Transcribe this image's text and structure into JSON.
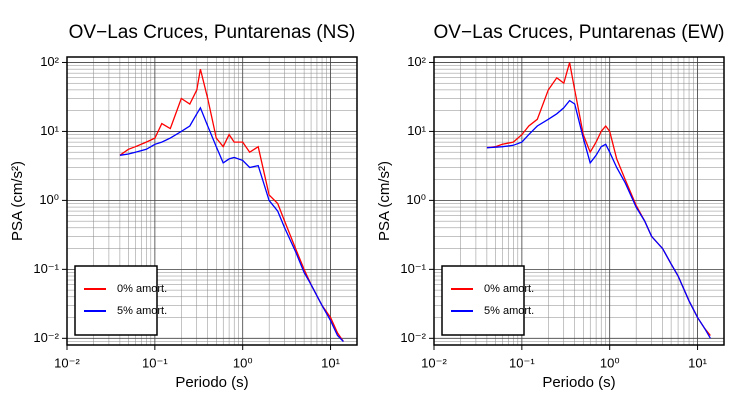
{
  "chart_data": [
    {
      "type": "line",
      "title": "OV−Las Cruces, Puntarenas (NS)",
      "x_label": "Periodo (s)",
      "y_label": "PSA (cm/s²)",
      "log_x": true,
      "log_y": true,
      "grid": true,
      "legend": "lower left",
      "xlim": [
        0.01,
        20
      ],
      "ylim": [
        0.008,
        120
      ],
      "xticks": [
        {
          "value": 0.01,
          "label": "10⁻²"
        },
        {
          "value": 0.1,
          "label": "10⁻¹"
        },
        {
          "value": 1,
          "label": "10⁰"
        },
        {
          "value": 10,
          "label": "10¹"
        }
      ],
      "yticks": [
        {
          "value": 0.01,
          "label": "10⁻²"
        },
        {
          "value": 0.1,
          "label": "10⁻¹"
        },
        {
          "value": 1,
          "label": "10⁰"
        },
        {
          "value": 10,
          "label": "10¹"
        },
        {
          "value": 100,
          "label": "10²"
        }
      ],
      "x": [
        0.04,
        0.05,
        0.06,
        0.08,
        0.1,
        0.12,
        0.15,
        0.2,
        0.25,
        0.3,
        0.33,
        0.4,
        0.5,
        0.6,
        0.7,
        0.8,
        1,
        1.2,
        1.5,
        2,
        2.5,
        3,
        4,
        5,
        6,
        8,
        10,
        12,
        14
      ],
      "series": [
        {
          "name": "0% amort.",
          "color": "#ff0000",
          "values": [
            4.5,
            5.5,
            6,
            7,
            8,
            13,
            11,
            30,
            25,
            40,
            80,
            30,
            8,
            6,
            9,
            7,
            7,
            5,
            6,
            1.2,
            0.9,
            0.5,
            0.2,
            0.1,
            0.06,
            0.03,
            0.02,
            0.012,
            0.009
          ]
        },
        {
          "name": "5% amort.",
          "color": "#0000ff",
          "values": [
            4.5,
            4.7,
            5,
            5.5,
            6.5,
            7,
            8,
            10,
            12,
            18,
            22,
            12,
            6,
            3.5,
            4,
            4.2,
            3.8,
            3,
            3.2,
            1,
            0.7,
            0.4,
            0.18,
            0.09,
            0.06,
            0.03,
            0.018,
            0.011,
            0.009
          ]
        }
      ]
    },
    {
      "type": "line",
      "title": "OV−Las Cruces, Puntarenas (EW)",
      "x_label": "Periodo (s)",
      "y_label": "PSA (cm/s²)",
      "log_x": true,
      "log_y": true,
      "grid": true,
      "legend": "lower left",
      "xlim": [
        0.01,
        20
      ],
      "ylim": [
        0.008,
        120
      ],
      "xticks": [
        {
          "value": 0.01,
          "label": "10⁻²"
        },
        {
          "value": 0.1,
          "label": "10⁻¹"
        },
        {
          "value": 1,
          "label": "10⁰"
        },
        {
          "value": 10,
          "label": "10¹"
        }
      ],
      "yticks": [
        {
          "value": 0.01,
          "label": "10⁻²"
        },
        {
          "value": 0.1,
          "label": "10⁻¹"
        },
        {
          "value": 1,
          "label": "10⁰"
        },
        {
          "value": 10,
          "label": "10¹"
        },
        {
          "value": 100,
          "label": "10²"
        }
      ],
      "x": [
        0.04,
        0.05,
        0.06,
        0.08,
        0.1,
        0.12,
        0.15,
        0.2,
        0.25,
        0.3,
        0.35,
        0.4,
        0.5,
        0.6,
        0.7,
        0.8,
        0.9,
        1,
        1.2,
        1.5,
        2,
        2.5,
        3,
        4,
        5,
        6,
        8,
        10,
        12,
        14
      ],
      "series": [
        {
          "name": "0% amort.",
          "color": "#ff0000",
          "values": [
            5.8,
            6,
            6.5,
            7,
            9,
            12,
            15,
            40,
            60,
            50,
            100,
            40,
            9,
            5,
            7,
            10,
            12,
            10,
            4,
            2,
            0.85,
            0.5,
            0.3,
            0.2,
            0.12,
            0.08,
            0.035,
            0.02,
            0.014,
            0.011
          ]
        },
        {
          "name": "5% amort.",
          "color": "#0000ff",
          "values": [
            5.8,
            5.9,
            6,
            6.3,
            7,
            9,
            12,
            15,
            18,
            22,
            28,
            25,
            8,
            3.5,
            4.5,
            6,
            6.5,
            5,
            3,
            1.8,
            0.8,
            0.5,
            0.3,
            0.2,
            0.12,
            0.08,
            0.035,
            0.02,
            0.014,
            0.01
          ]
        }
      ]
    }
  ]
}
